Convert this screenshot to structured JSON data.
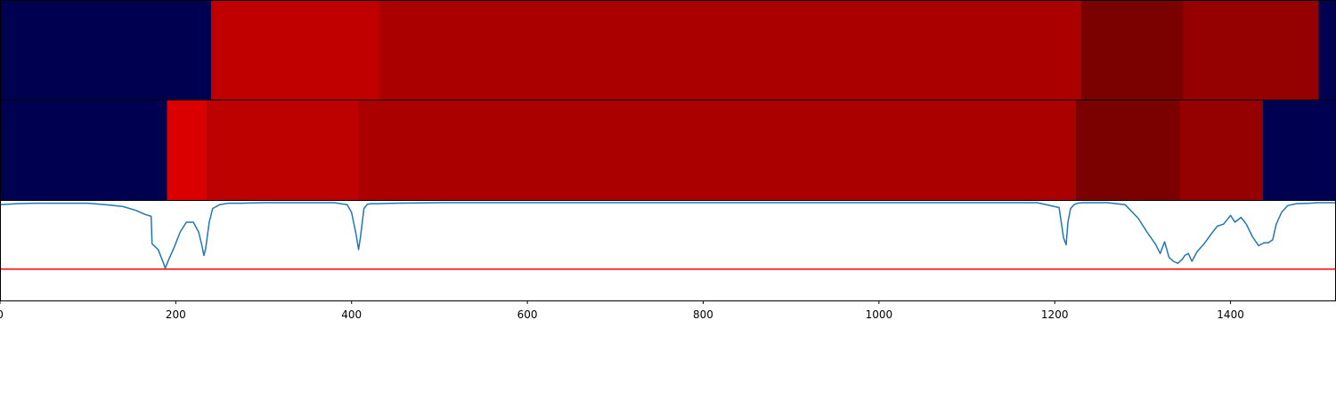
{
  "chart_data": [
    {
      "type": "heatmap",
      "segments": [
        {
          "start": 0,
          "end": 240,
          "color": "#000050"
        },
        {
          "start": 240,
          "end": 432,
          "color": "#c00000"
        },
        {
          "start": 432,
          "end": 1230,
          "color": "#aa0000"
        },
        {
          "start": 1230,
          "end": 1346,
          "color": "#7b0000"
        },
        {
          "start": 1346,
          "end": 1500,
          "color": "#950000"
        },
        {
          "start": 1500,
          "end": 1520,
          "color": "#000050"
        }
      ]
    },
    {
      "type": "heatmap",
      "segments": [
        {
          "start": 0,
          "end": 190,
          "color": "#000050"
        },
        {
          "start": 190,
          "end": 235,
          "color": "#db0000"
        },
        {
          "start": 235,
          "end": 408,
          "color": "#bd0000"
        },
        {
          "start": 408,
          "end": 1224,
          "color": "#aa0000"
        },
        {
          "start": 1224,
          "end": 1342,
          "color": "#7b0000"
        },
        {
          "start": 1342,
          "end": 1437,
          "color": "#950000"
        },
        {
          "start": 1437,
          "end": 1520,
          "color": "#000050"
        }
      ]
    },
    {
      "type": "line",
      "xlim": [
        0,
        1520
      ],
      "ylim": [
        -1.0,
        0.0
      ],
      "threshold": {
        "y": -0.68,
        "color": "#ff0000"
      },
      "series": [
        {
          "color": "#1f77b4",
          "x": [
            0,
            20,
            40,
            60,
            80,
            100,
            120,
            140,
            155,
            165,
            172,
            173,
            180,
            186,
            188,
            192,
            198,
            205,
            212,
            220,
            226,
            230,
            232,
            234,
            238,
            242,
            250,
            260,
            275,
            300,
            340,
            380,
            395,
            400,
            405,
            408,
            410,
            414,
            418,
            423,
            430,
            450,
            500,
            600,
            700,
            800,
            900,
            1000,
            1100,
            1180,
            1205,
            1210,
            1213,
            1215,
            1218,
            1222,
            1226,
            1232,
            1240,
            1260,
            1280,
            1295,
            1305,
            1315,
            1320,
            1325,
            1330,
            1335,
            1340,
            1345,
            1348,
            1352,
            1356,
            1362,
            1370,
            1378,
            1385,
            1392,
            1400,
            1405,
            1412,
            1418,
            1425,
            1432,
            1438,
            1443,
            1448,
            1452,
            1458,
            1465,
            1475,
            1490,
            1500,
            1520
          ],
          "y": [
            -0.02,
            -0.01,
            -0.005,
            -0.005,
            -0.005,
            -0.005,
            -0.02,
            -0.04,
            -0.08,
            -0.12,
            -0.14,
            -0.42,
            -0.48,
            -0.62,
            -0.67,
            -0.58,
            -0.46,
            -0.3,
            -0.2,
            -0.2,
            -0.3,
            -0.45,
            -0.54,
            -0.47,
            -0.2,
            -0.06,
            -0.02,
            -0.005,
            -0.005,
            0.0,
            0.0,
            0.0,
            -0.02,
            -0.1,
            -0.32,
            -0.48,
            -0.36,
            -0.06,
            -0.015,
            -0.01,
            -0.01,
            -0.005,
            0.0,
            0.0,
            0.0,
            0.0,
            0.0,
            0.0,
            0.0,
            0.0,
            -0.05,
            -0.36,
            -0.43,
            -0.2,
            -0.06,
            -0.02,
            -0.005,
            0.0,
            0.0,
            0.0,
            -0.02,
            -0.16,
            -0.3,
            -0.43,
            -0.52,
            -0.4,
            -0.56,
            -0.6,
            -0.62,
            -0.58,
            -0.54,
            -0.52,
            -0.6,
            -0.5,
            -0.42,
            -0.32,
            -0.24,
            -0.22,
            -0.13,
            -0.2,
            -0.15,
            -0.22,
            -0.35,
            -0.44,
            -0.41,
            -0.41,
            -0.38,
            -0.22,
            -0.1,
            -0.03,
            -0.01,
            -0.005,
            0.0,
            0.0
          ]
        }
      ],
      "xticks": [
        0,
        200,
        400,
        600,
        800,
        1000,
        1200,
        1400
      ],
      "xtick_labels": [
        "0",
        "200",
        "400",
        "600",
        "800",
        "1000",
        "1200",
        "1400"
      ]
    }
  ]
}
